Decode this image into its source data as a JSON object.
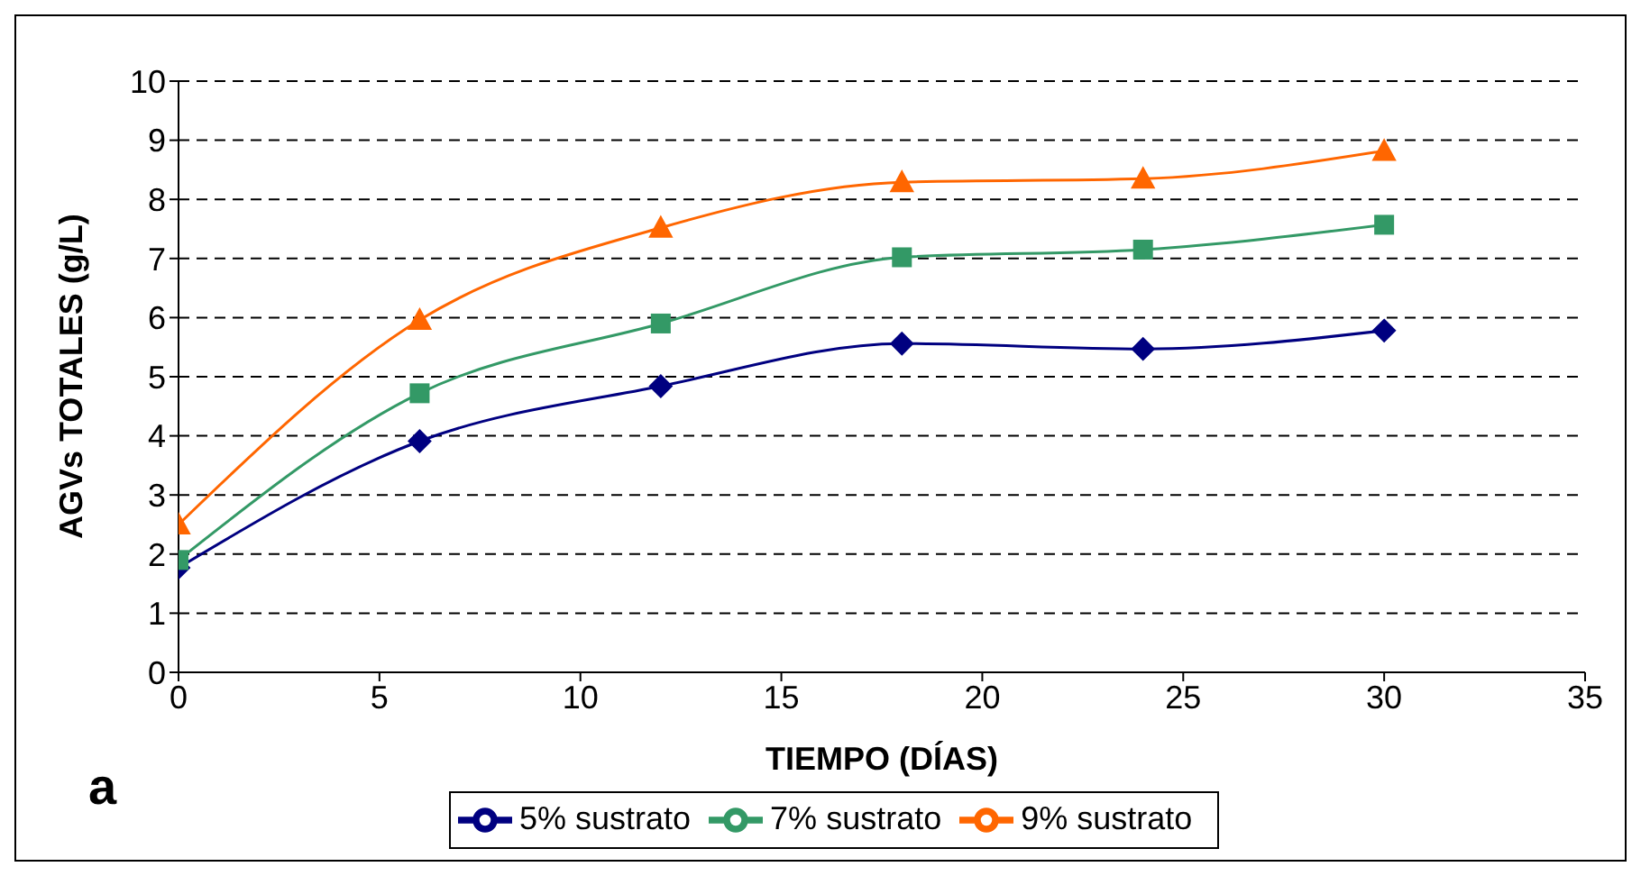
{
  "chart_data": {
    "type": "line",
    "xlabel": "TIEMPO (DÍAS)",
    "ylabel": "AGVs TOTALES (g/L)",
    "x": [
      0,
      6,
      12,
      18,
      24,
      30
    ],
    "series": [
      {
        "name": "5% sustrato",
        "color": "#000080",
        "marker": "diamond",
        "values": [
          1.77,
          3.91,
          4.84,
          5.56,
          5.47,
          5.78
        ]
      },
      {
        "name": "7% sustrato",
        "color": "#339966",
        "marker": "square",
        "values": [
          1.9,
          4.72,
          5.9,
          7.02,
          7.15,
          7.57
        ]
      },
      {
        "name": "9% sustrato",
        "color": "#ff6600",
        "marker": "triangle",
        "values": [
          2.5,
          5.96,
          7.52,
          8.29,
          8.35,
          8.82
        ]
      }
    ],
    "xlim": [
      0,
      35
    ],
    "xticks": [
      0,
      5,
      10,
      15,
      20,
      25,
      30,
      35
    ],
    "ylim": [
      0,
      10
    ],
    "yticks": [
      0,
      1,
      2,
      3,
      4,
      5,
      6,
      7,
      8,
      9,
      10
    ],
    "grid": "y",
    "legend": "bottom",
    "line_style": "solid",
    "annotations": [
      "a"
    ]
  }
}
